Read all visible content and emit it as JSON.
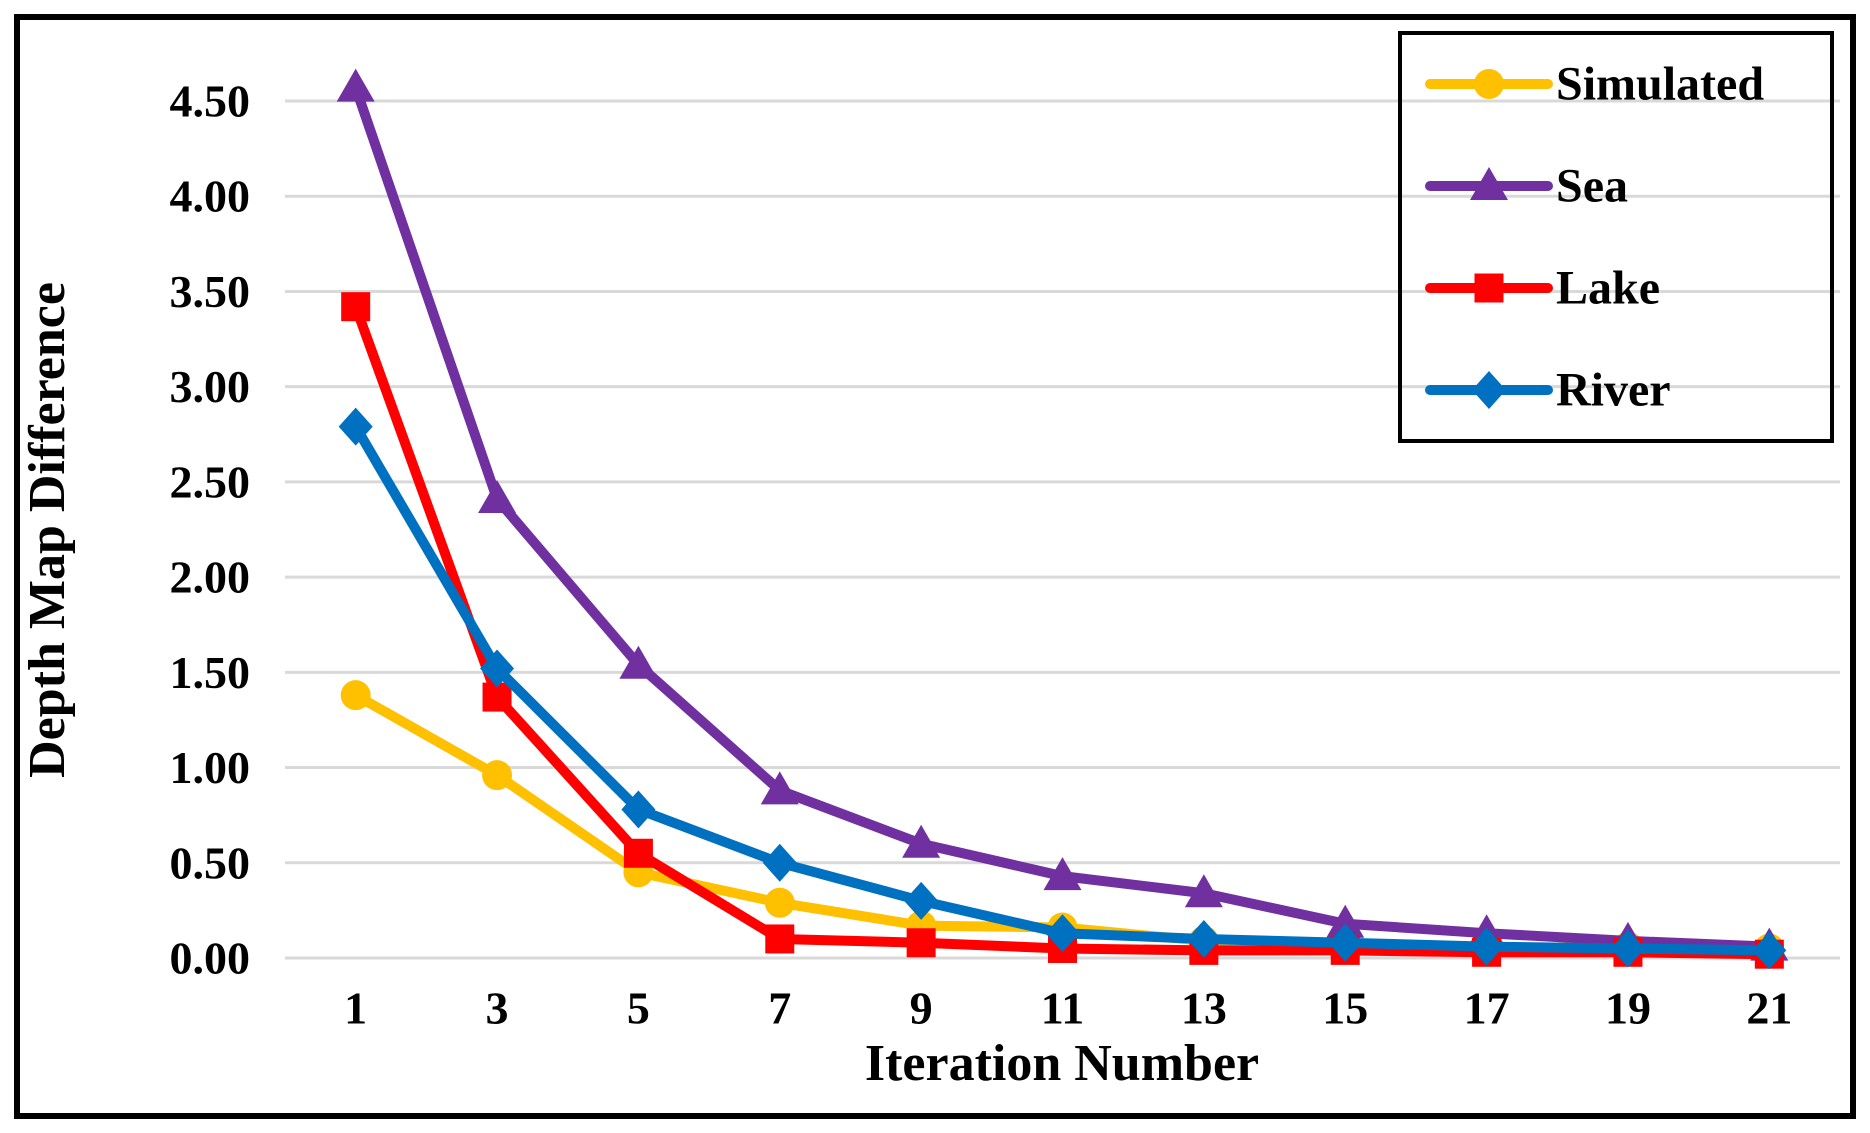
{
  "chart_data": {
    "type": "line",
    "title": "",
    "xlabel": "Iteration Number",
    "ylabel": "Depth Map Difference",
    "x": [
      1,
      3,
      5,
      7,
      9,
      11,
      13,
      15,
      17,
      19,
      21
    ],
    "x_tick_labels": [
      "1",
      "3",
      "5",
      "7",
      "9",
      "11",
      "13",
      "15",
      "17",
      "19",
      "21"
    ],
    "y_ticks": [
      0.0,
      0.5,
      1.0,
      1.5,
      2.0,
      2.5,
      3.0,
      3.5,
      4.0,
      4.5
    ],
    "y_tick_labels": [
      "0.00",
      "0.50",
      "1.00",
      "1.50",
      "2.00",
      "2.50",
      "3.00",
      "3.50",
      "4.00",
      "4.50"
    ],
    "ylim": [
      0,
      4.75
    ],
    "grid": "horizontal",
    "legend_position": "top-right",
    "series": [
      {
        "name": "Simulated",
        "marker": "circle",
        "color": "#FFC000",
        "values": [
          1.38,
          0.96,
          0.45,
          0.29,
          0.17,
          0.16,
          0.09,
          0.07,
          0.05,
          0.06,
          0.05
        ]
      },
      {
        "name": "Sea",
        "marker": "triangle",
        "color": "#7030A0",
        "values": [
          4.57,
          2.41,
          1.54,
          0.88,
          0.6,
          0.43,
          0.34,
          0.18,
          0.13,
          0.09,
          0.06
        ]
      },
      {
        "name": "Lake",
        "marker": "square",
        "color": "#FF0000",
        "values": [
          3.42,
          1.37,
          0.55,
          0.1,
          0.08,
          0.05,
          0.04,
          0.04,
          0.03,
          0.03,
          0.02
        ]
      },
      {
        "name": "River",
        "marker": "diamond",
        "color": "#0070C0",
        "values": [
          2.79,
          1.52,
          0.78,
          0.5,
          0.3,
          0.13,
          0.1,
          0.08,
          0.06,
          0.05,
          0.04
        ]
      }
    ]
  },
  "frame": {
    "background": "#FFFFFF",
    "border_color": "#000000",
    "gridline_color": "#D9D9D9",
    "legend_border_color": "#000000"
  }
}
